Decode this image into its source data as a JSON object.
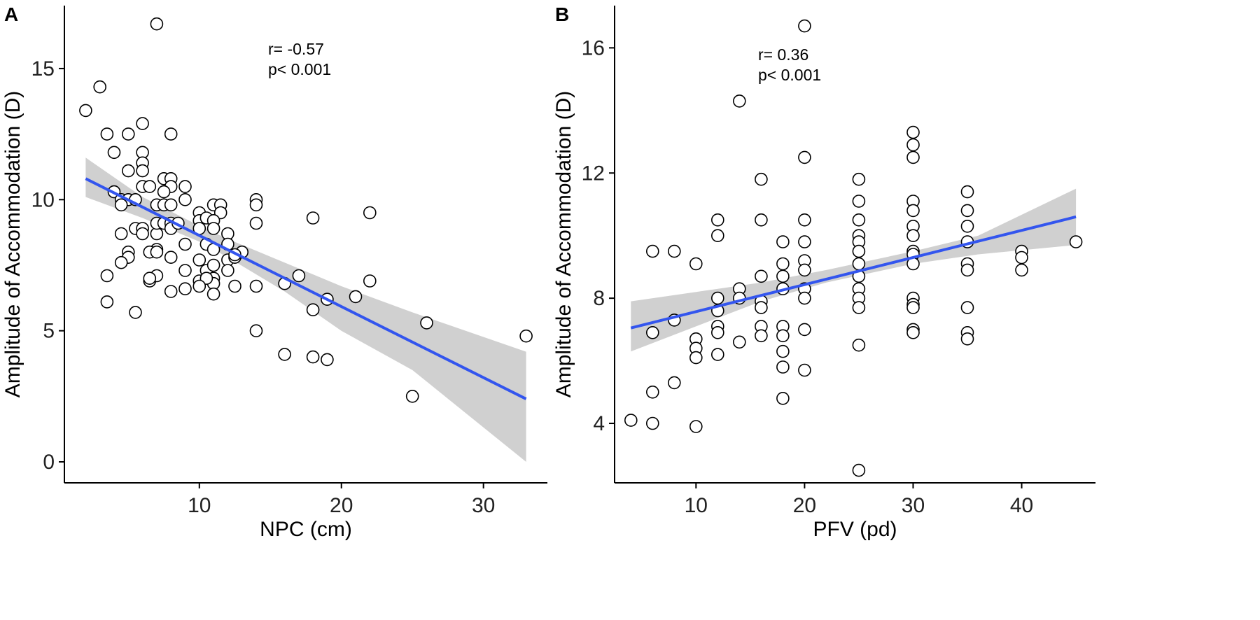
{
  "chart_data": [
    {
      "panel": "A",
      "type": "scatter",
      "xlabel": "NPC (cm)",
      "ylabel": "Amplitude of Accommodation (D)",
      "xlim": [
        0.5,
        34.5
      ],
      "ylim": [
        -0.8,
        17.4
      ],
      "xticks": [
        10,
        20,
        30
      ],
      "yticks": [
        0,
        5,
        10,
        15
      ],
      "annotation": {
        "r": "r= -0.57",
        "p": "p< 0.001"
      },
      "fit": {
        "x1": 2,
        "y1": 10.8,
        "x2": 33,
        "y2": 2.4
      },
      "ci": {
        "x": [
          2,
          6,
          10,
          12,
          16,
          20,
          25,
          33
        ],
        "lower": [
          10.1,
          9.3,
          8.4,
          7.8,
          6.5,
          5.0,
          3.5,
          0.0
        ],
        "upper": [
          11.6,
          10.1,
          9.0,
          8.5,
          7.6,
          6.7,
          5.7,
          4.2
        ]
      },
      "points": [
        [
          2,
          13.4
        ],
        [
          3,
          14.3
        ],
        [
          3.5,
          12.5
        ],
        [
          5,
          12.5
        ],
        [
          6,
          12.9
        ],
        [
          7,
          16.7
        ],
        [
          8,
          12.5
        ],
        [
          4,
          11.8
        ],
        [
          6,
          11.8
        ],
        [
          6,
          11.4
        ],
        [
          5,
          11.1
        ],
        [
          6,
          11.1
        ],
        [
          6,
          10.5
        ],
        [
          6.5,
          10.5
        ],
        [
          7.5,
          10.8
        ],
        [
          8,
          10.8
        ],
        [
          8,
          10.5
        ],
        [
          9,
          10.5
        ],
        [
          4,
          10.3
        ],
        [
          4.5,
          10.0
        ],
        [
          5,
          10.0
        ],
        [
          5.5,
          10.0
        ],
        [
          4.5,
          9.8
        ],
        [
          7,
          9.8
        ],
        [
          7.5,
          9.8
        ],
        [
          8,
          9.8
        ],
        [
          9,
          10.0
        ],
        [
          7.5,
          10.3
        ],
        [
          5.5,
          8.9
        ],
        [
          6,
          8.9
        ],
        [
          6,
          8.7
        ],
        [
          7,
          8.7
        ],
        [
          7,
          9.1
        ],
        [
          7.5,
          9.1
        ],
        [
          8,
          9.1
        ],
        [
          8,
          8.9
        ],
        [
          8.5,
          9.1
        ],
        [
          4.5,
          8.7
        ],
        [
          9,
          8.3
        ],
        [
          10,
          9.5
        ],
        [
          10,
          9.2
        ],
        [
          10.5,
          9.3
        ],
        [
          11,
          9.8
        ],
        [
          11.5,
          9.8
        ],
        [
          11.5,
          9.5
        ],
        [
          11,
          9.2
        ],
        [
          11,
          8.9
        ],
        [
          10,
          8.9
        ],
        [
          10.5,
          8.3
        ],
        [
          11,
          8.1
        ],
        [
          12,
          8.7
        ],
        [
          12,
          8.3
        ],
        [
          12,
          7.7
        ],
        [
          12.5,
          7.8
        ],
        [
          13,
          8.0
        ],
        [
          12.5,
          7.9
        ],
        [
          12,
          7.3
        ],
        [
          10,
          7.7
        ],
        [
          10.5,
          7.3
        ],
        [
          11,
          7.5
        ],
        [
          11,
          7.0
        ],
        [
          10,
          6.9
        ],
        [
          11,
          6.8
        ],
        [
          10.5,
          7.0
        ],
        [
          10,
          6.7
        ],
        [
          11,
          6.4
        ],
        [
          12.5,
          6.7
        ],
        [
          7,
          8.1
        ],
        [
          6.5,
          8.0
        ],
        [
          5,
          8.0
        ],
        [
          5,
          7.8
        ],
        [
          4.5,
          7.6
        ],
        [
          7,
          8.0
        ],
        [
          8,
          7.8
        ],
        [
          9,
          7.3
        ],
        [
          3.5,
          7.1
        ],
        [
          6.5,
          6.9
        ],
        [
          7,
          7.1
        ],
        [
          6.5,
          7.0
        ],
        [
          8,
          6.5
        ],
        [
          9,
          6.6
        ],
        [
          3.5,
          6.1
        ],
        [
          5.5,
          5.7
        ],
        [
          14,
          10.0
        ],
        [
          14,
          9.8
        ],
        [
          14,
          9.1
        ],
        [
          14,
          6.7
        ],
        [
          14,
          5.0
        ],
        [
          16,
          6.8
        ],
        [
          17,
          7.1
        ],
        [
          18,
          9.3
        ],
        [
          18,
          5.8
        ],
        [
          18,
          4.0
        ],
        [
          19,
          6.2
        ],
        [
          19,
          3.9
        ],
        [
          16,
          4.1
        ],
        [
          21,
          6.3
        ],
        [
          22,
          9.5
        ],
        [
          22,
          6.9
        ],
        [
          26,
          5.3
        ],
        [
          25,
          2.5
        ],
        [
          33,
          4.8
        ]
      ]
    },
    {
      "panel": "B",
      "type": "scatter",
      "xlabel": "PFV (pd)",
      "ylabel": "Amplitude of Accommodation (D)",
      "xlim": [
        2.5,
        46.8
      ],
      "ylim": [
        2.1,
        17.35
      ],
      "xticks": [
        10,
        20,
        30,
        40
      ],
      "yticks": [
        4,
        8,
        12,
        16
      ],
      "annotation": {
        "r": "r= 0.36",
        "p": "p< 0.001"
      },
      "fit": {
        "x1": 4,
        "y1": 7.05,
        "x2": 45,
        "y2": 10.6
      },
      "ci": {
        "x": [
          4,
          10,
          16,
          22,
          26,
          30,
          36,
          45
        ],
        "lower": [
          6.3,
          7.1,
          7.9,
          8.5,
          8.8,
          9.1,
          9.4,
          9.7
        ],
        "upper": [
          7.9,
          8.2,
          8.5,
          8.9,
          9.2,
          9.5,
          10.0,
          11.5
        ]
      },
      "points": [
        [
          4,
          4.1
        ],
        [
          6,
          4.0
        ],
        [
          6,
          5.0
        ],
        [
          6,
          6.9
        ],
        [
          6,
          9.5
        ],
        [
          8,
          9.5
        ],
        [
          8,
          7.3
        ],
        [
          8,
          5.3
        ],
        [
          10,
          9.1
        ],
        [
          10,
          6.7
        ],
        [
          10,
          6.4
        ],
        [
          10,
          6.1
        ],
        [
          10,
          3.9
        ],
        [
          12,
          10.5
        ],
        [
          12,
          10.0
        ],
        [
          12,
          8.0
        ],
        [
          12,
          7.6
        ],
        [
          12,
          7.1
        ],
        [
          12,
          6.9
        ],
        [
          12,
          6.2
        ],
        [
          14,
          14.3
        ],
        [
          14,
          8.3
        ],
        [
          14,
          8.0
        ],
        [
          14,
          6.6
        ],
        [
          16,
          11.8
        ],
        [
          16,
          10.5
        ],
        [
          16,
          8.7
        ],
        [
          16,
          7.9
        ],
        [
          16,
          7.7
        ],
        [
          16,
          7.1
        ],
        [
          16,
          6.8
        ],
        [
          18,
          9.8
        ],
        [
          18,
          9.1
        ],
        [
          18,
          8.7
        ],
        [
          18,
          8.3
        ],
        [
          18,
          7.1
        ],
        [
          18,
          6.8
        ],
        [
          18,
          6.3
        ],
        [
          18,
          5.8
        ],
        [
          18,
          4.8
        ],
        [
          20,
          16.7
        ],
        [
          20,
          12.5
        ],
        [
          20,
          10.5
        ],
        [
          20,
          9.8
        ],
        [
          20,
          9.2
        ],
        [
          20,
          8.9
        ],
        [
          20,
          8.3
        ],
        [
          20,
          8.0
        ],
        [
          20,
          7.0
        ],
        [
          20,
          5.7
        ],
        [
          25,
          11.8
        ],
        [
          25,
          11.1
        ],
        [
          25,
          10.5
        ],
        [
          25,
          10.0
        ],
        [
          25,
          9.8
        ],
        [
          25,
          9.5
        ],
        [
          25,
          9.1
        ],
        [
          25,
          8.7
        ],
        [
          25,
          8.3
        ],
        [
          25,
          8.0
        ],
        [
          25,
          7.7
        ],
        [
          25,
          6.5
        ],
        [
          25,
          2.5
        ],
        [
          30,
          13.3
        ],
        [
          30,
          12.9
        ],
        [
          30,
          12.5
        ],
        [
          30,
          11.1
        ],
        [
          30,
          10.8
        ],
        [
          30,
          10.3
        ],
        [
          30,
          10.0
        ],
        [
          30,
          9.5
        ],
        [
          30,
          9.4
        ],
        [
          30,
          9.1
        ],
        [
          30,
          8.0
        ],
        [
          30,
          7.8
        ],
        [
          30,
          7.7
        ],
        [
          30,
          7.0
        ],
        [
          30,
          6.9
        ],
        [
          35,
          11.4
        ],
        [
          35,
          10.8
        ],
        [
          35,
          10.3
        ],
        [
          35,
          9.8
        ],
        [
          35,
          9.1
        ],
        [
          35,
          8.9
        ],
        [
          35,
          7.7
        ],
        [
          35,
          6.9
        ],
        [
          35,
          6.7
        ],
        [
          40,
          9.5
        ],
        [
          40,
          9.3
        ],
        [
          40,
          8.9
        ],
        [
          45,
          9.8
        ]
      ]
    }
  ]
}
